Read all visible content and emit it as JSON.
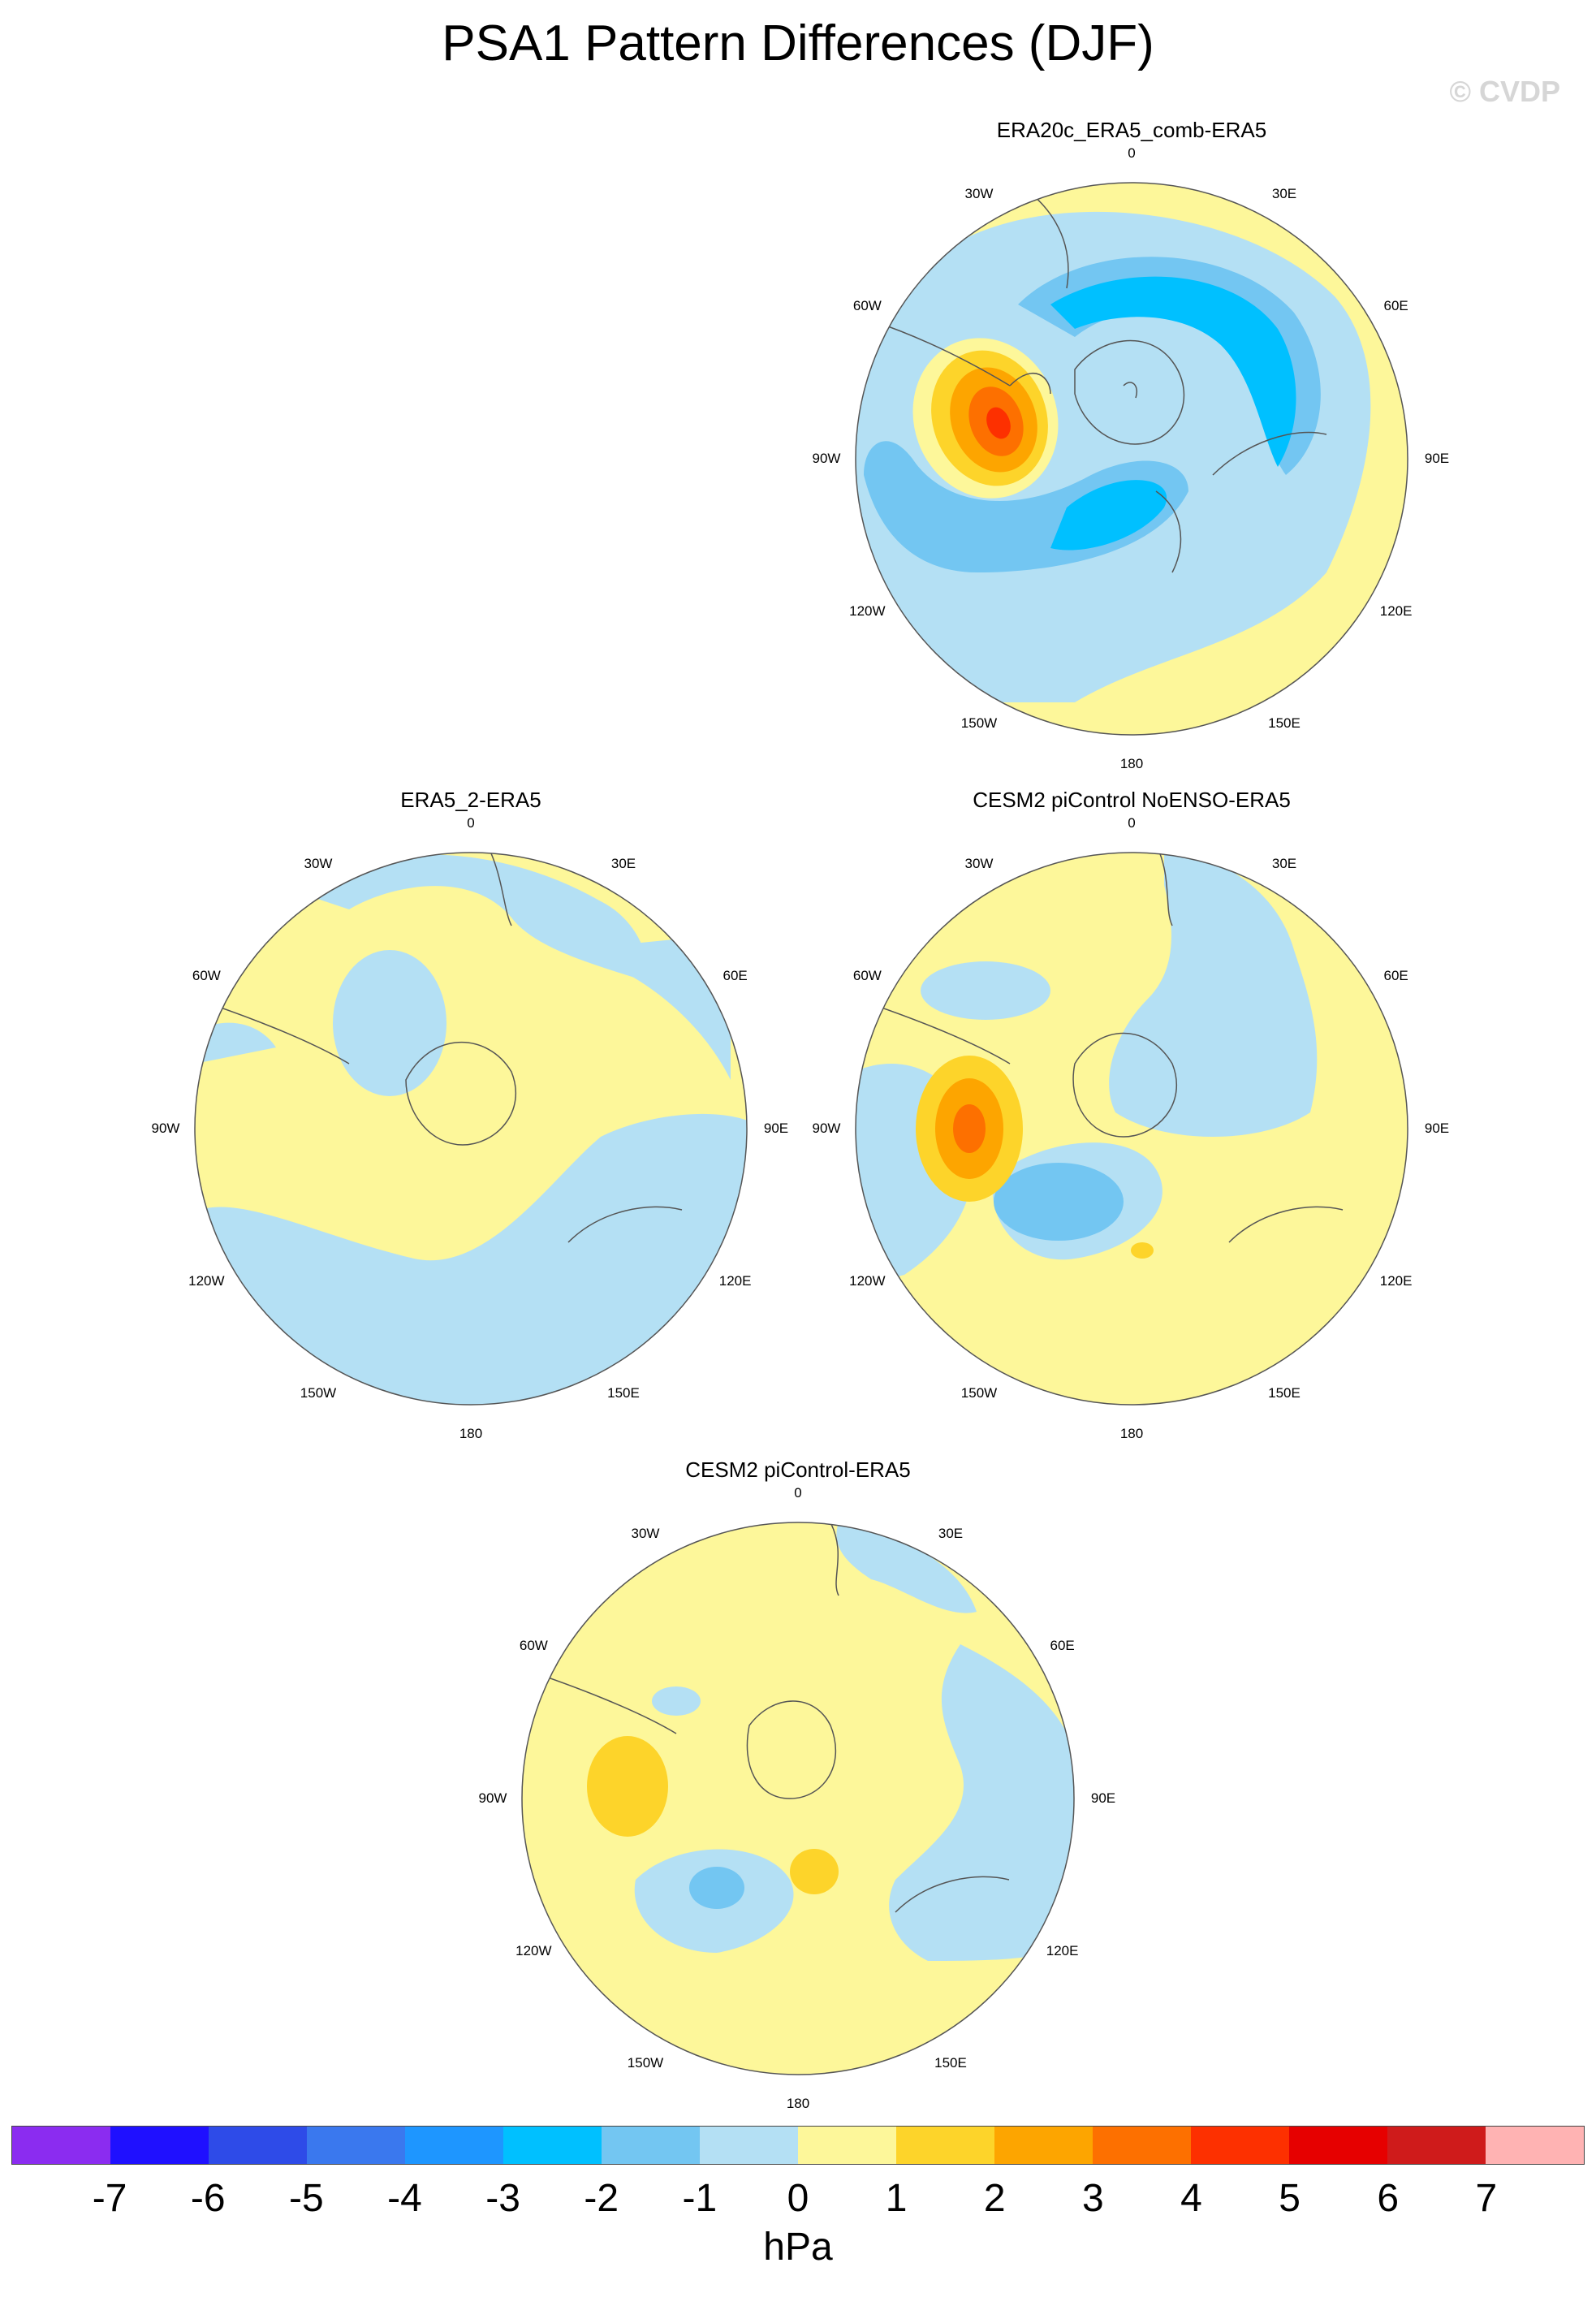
{
  "title": "PSA1 Pattern Differences (DJF)",
  "watermark": "© CVDP",
  "lon_labels": [
    "0",
    "30E",
    "60E",
    "90E",
    "120E",
    "150E",
    "180",
    "150W",
    "120W",
    "90W",
    "60W",
    "30W"
  ],
  "panels": [
    {
      "title": "ERA20c_ERA5_comb-ERA5"
    },
    {
      "title": "ERA5_2-ERA5"
    },
    {
      "title": "CESM2 piControl NoENSO-ERA5"
    },
    {
      "title": "CESM2 piControl-ERA5"
    }
  ],
  "colorbar": {
    "units": "hPa",
    "ticks": [
      "-7",
      "-6",
      "-5",
      "-4",
      "-3",
      "-2",
      "-1",
      "0",
      "1",
      "2",
      "3",
      "4",
      "5",
      "6",
      "7"
    ],
    "colors": [
      "#8b2cf0",
      "#1f10ff",
      "#2e4be8",
      "#3a78ee",
      "#1e96ff",
      "#00c0ff",
      "#73c6f2",
      "#b4e0f4",
      "#fdf79a",
      "#fdd42a",
      "#fda500",
      "#fd7000",
      "#fd3000",
      "#e60000",
      "#cf1b1b",
      "#ffb3b3"
    ]
  },
  "colors": {
    "zero_pos": "#fdf79a",
    "zero_neg": "#b4e0f4",
    "neg2": "#73c6f2",
    "neg3": "#00c0ff",
    "pos2": "#fdd42a",
    "pos3": "#fda500",
    "pos4": "#fd7000",
    "pos5": "#fd3000"
  }
}
